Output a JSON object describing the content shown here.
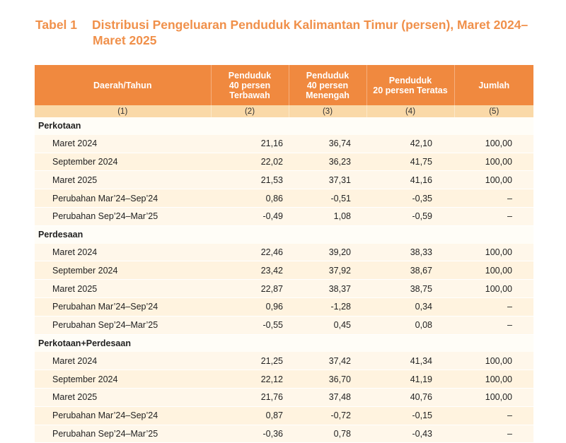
{
  "title": {
    "number": "Tabel 1",
    "line1": "Distribusi Pengeluaran Penduduk Kalimantan Timur (persen), Maret 2024–",
    "line2": "Maret 2025"
  },
  "header": {
    "columns": [
      {
        "lines": [
          "Daerah/Tahun"
        ]
      },
      {
        "lines": [
          "Penduduk",
          "40 persen",
          "Terbawah"
        ]
      },
      {
        "lines": [
          "Penduduk",
          "40 persen",
          "Menengah"
        ]
      },
      {
        "lines": [
          "Penduduk",
          "20 persen Teratas"
        ]
      },
      {
        "lines": [
          "Jumlah"
        ]
      }
    ],
    "numbers": [
      "(1)",
      "(2)",
      "(3)",
      "(4)",
      "(5)"
    ]
  },
  "sections": [
    {
      "name": "Perkotaan",
      "rows": [
        [
          "Maret 2024",
          "21,16",
          "36,74",
          "42,10",
          "100,00"
        ],
        [
          "September 2024",
          "22,02",
          "36,23",
          "41,75",
          "100,00"
        ],
        [
          "Maret 2025",
          "21,53",
          "37,31",
          "41,16",
          "100,00"
        ],
        [
          "Perubahan Mar’24–Sep’24",
          "0,86",
          "-0,51",
          "-0,35",
          "–"
        ],
        [
          "Perubahan Sep’24–Mar’25",
          "-0,49",
          "1,08",
          "-0,59",
          "–"
        ]
      ]
    },
    {
      "name": "Perdesaan",
      "rows": [
        [
          "Maret 2024",
          "22,46",
          "39,20",
          "38,33",
          "100,00"
        ],
        [
          "September 2024",
          "23,42",
          "37,92",
          "38,67",
          "100,00"
        ],
        [
          "Maret 2025",
          "22,87",
          "38,37",
          "38,75",
          "100,00"
        ],
        [
          "Perubahan Mar’24–Sep’24",
          "0,96",
          "-1,28",
          "0,34",
          "–"
        ],
        [
          "Perubahan Sep’24–Mar’25",
          "-0,55",
          "0,45",
          "0,08",
          "–"
        ]
      ]
    },
    {
      "name": "Perkotaan+Perdesaan",
      "rows": [
        [
          "Maret 2024",
          "21,25",
          "37,42",
          "41,34",
          "100,00"
        ],
        [
          "September 2024",
          "22,12",
          "36,70",
          "41,19",
          "100,00"
        ],
        [
          "Maret 2025",
          "21,76",
          "37,48",
          "40,76",
          "100,00"
        ],
        [
          "Perubahan Mar’24–Sep’24",
          "0,87",
          "-0,72",
          "-0,15",
          "–"
        ],
        [
          "Perubahan Sep’24–Mar’25",
          "-0,36",
          "0,78",
          "-0,43",
          "–"
        ]
      ]
    }
  ]
}
